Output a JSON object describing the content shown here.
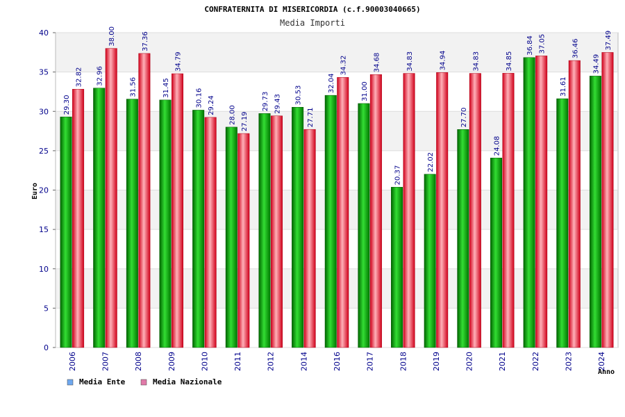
{
  "chart_data": {
    "type": "bar",
    "title": "CONFRATERNITA DI MISERICORDIA (c.f.90003040665)",
    "subtitle": "Media Importi",
    "xlabel": "Anno",
    "ylabel": "Euro",
    "ylim": [
      0,
      40
    ],
    "yticks": [
      0,
      5,
      10,
      15,
      20,
      25,
      30,
      35,
      40
    ],
    "grid": true,
    "legend_position": "bottom-left",
    "categories": [
      "2006",
      "2007",
      "2008",
      "2009",
      "2010",
      "2011",
      "2012",
      "2014",
      "2016",
      "2017",
      "2018",
      "2019",
      "2020",
      "2021",
      "2022",
      "2023",
      "2024"
    ],
    "series": [
      {
        "name": "Media Ente",
        "color": "#00aa00",
        "legend_color": "#6fa8ef",
        "values": [
          29.3,
          32.96,
          31.56,
          31.45,
          30.16,
          28.0,
          29.73,
          30.53,
          32.04,
          31.0,
          20.37,
          22.02,
          27.7,
          24.08,
          36.84,
          31.61,
          34.49
        ],
        "labels": [
          "29.30",
          "32.96",
          "31.56",
          "31.45",
          "30.16",
          "28.00",
          "29.73",
          "30.53",
          "32.04",
          "31.00",
          "20.37",
          "22.02",
          "27.70",
          "24.08",
          "36.84",
          "31.61",
          "34.49"
        ]
      },
      {
        "name": "Media Nazionale",
        "color": "#e8102a",
        "legend_color": "#e07aa8",
        "values": [
          32.82,
          38.0,
          37.36,
          34.79,
          29.24,
          27.19,
          29.43,
          27.71,
          34.32,
          34.68,
          34.83,
          34.94,
          34.83,
          34.85,
          37.05,
          36.46,
          37.49
        ],
        "labels": [
          "32.82",
          "38.00",
          "37.36",
          "34.79",
          "29.24",
          "27.19",
          "29.43",
          "27.71",
          "34.32",
          "34.68",
          "34.83",
          "34.94",
          "34.83",
          "34.85",
          "37.05",
          "36.46",
          "37.49"
        ]
      }
    ]
  }
}
